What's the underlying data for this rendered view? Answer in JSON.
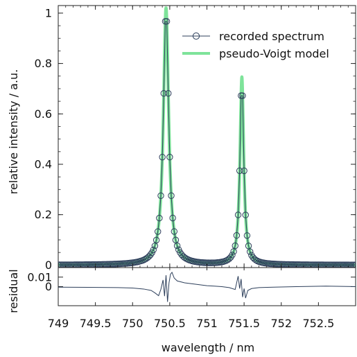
{
  "chart_data": [
    {
      "type": "line",
      "title": "",
      "xlabel": "wavelength / nm",
      "ylabel": "relative intensity / a.u.",
      "xlim": [
        749.0,
        753.0
      ],
      "ylim": [
        -0.01,
        1.03
      ],
      "xticks": [
        749,
        749.5,
        750,
        750.5,
        751,
        751.5,
        752,
        752.5
      ],
      "xtick_labels": [
        "749",
        "749.5",
        "750",
        "750.5",
        "751",
        "751.5",
        "752",
        "752.5"
      ],
      "yticks": [
        0,
        0.2,
        0.4,
        0.6,
        0.8,
        1
      ],
      "ytick_labels": [
        "0",
        "0.2",
        "0.4",
        "0.6",
        "0.8",
        "1"
      ],
      "grid": false,
      "legend_position": "top-right",
      "peaks": [
        {
          "center": 750.45,
          "amplitude": 1.02,
          "fwhm": 0.085
        },
        {
          "center": 751.47,
          "amplitude": 0.745,
          "fwhm": 0.06
        }
      ],
      "series": [
        {
          "name": "recorded spectrum",
          "style": "markers",
          "marker": "open-circle",
          "color": "#2c3e5a",
          "step": 0.02,
          "x_range": [
            749.0,
            753.0
          ]
        },
        {
          "name": "pseudo-Voigt model",
          "style": "line",
          "color": "#7ee39a",
          "x_range": [
            749.0,
            753.0
          ]
        }
      ]
    },
    {
      "type": "line",
      "title": "",
      "xlabel": "wavelength / nm",
      "ylabel": "residual",
      "xlim": [
        749.0,
        753.0
      ],
      "ylim": [
        -0.02,
        0.02
      ],
      "yticks": [
        0,
        0.01
      ],
      "ytick_labels": [
        "0",
        "0.01"
      ],
      "series": [
        {
          "name": "",
          "color": "#2c3e5a",
          "x": [
            749.0,
            749.4,
            749.8,
            750.0,
            750.15,
            750.25,
            750.3,
            750.35,
            750.38,
            750.41,
            750.43,
            750.45,
            750.47,
            750.49,
            750.51,
            750.53,
            750.56,
            750.6,
            750.65,
            750.7,
            750.8,
            750.9,
            751.0,
            751.1,
            751.2,
            751.3,
            751.38,
            751.42,
            751.44,
            751.46,
            751.48,
            751.5,
            751.52,
            751.55,
            751.6,
            751.7,
            751.9,
            752.2,
            752.6,
            753.0
          ],
          "y": [
            -0.0005,
            -0.0007,
            -0.001,
            -0.0015,
            -0.0025,
            -0.004,
            -0.0065,
            -0.0095,
            -0.003,
            0.007,
            -0.01,
            0.012,
            -0.016,
            0.004,
            0.013,
            0.015,
            0.009,
            0.006,
            0.005,
            0.004,
            0.003,
            0.002,
            0.001,
            0.0005,
            0.0,
            -0.001,
            -0.003,
            0.011,
            -0.002,
            0.008,
            -0.011,
            -0.002,
            -0.012,
            -0.004,
            -0.002,
            -0.001,
            -0.0005,
            0.0,
            0.0005,
            0.0
          ]
        }
      ]
    }
  ]
}
